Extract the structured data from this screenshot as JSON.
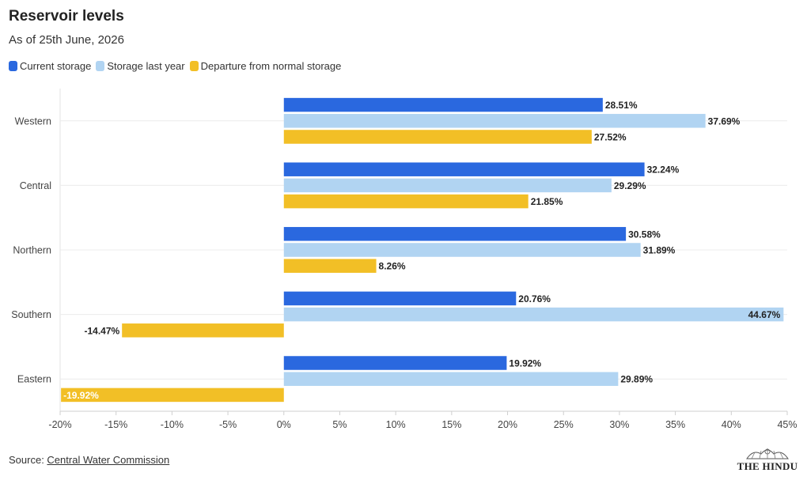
{
  "header": {
    "title": "Reservoir levels",
    "subtitle": "As of 25th June, 2026"
  },
  "colors": {
    "current": "#2a68df",
    "last_year": "#b1d4f2",
    "departure": "#f2bf26"
  },
  "chart_data": {
    "type": "bar",
    "orientation": "horizontal",
    "categories": [
      "Western",
      "Central",
      "Northern",
      "Southern",
      "Eastern"
    ],
    "series": [
      {
        "name": "Current storage",
        "values": [
          28.51,
          32.24,
          30.58,
          20.76,
          19.92
        ]
      },
      {
        "name": "Storage last year",
        "values": [
          37.69,
          29.29,
          31.89,
          44.67,
          29.89
        ]
      },
      {
        "name": "Departure from normal storage",
        "values": [
          27.52,
          21.85,
          8.26,
          -14.47,
          -19.92
        ]
      }
    ],
    "xlim": [
      -20,
      45
    ],
    "xticks": [
      -20,
      -15,
      -10,
      -5,
      0,
      5,
      10,
      15,
      20,
      25,
      30,
      35,
      40,
      45
    ],
    "tick_suffix": "%",
    "grid": true,
    "legend_position": "top-left"
  },
  "footer": {
    "source_prefix": "Source: ",
    "source_name": "Central Water Commission",
    "logo_text": "THE HINDU"
  }
}
